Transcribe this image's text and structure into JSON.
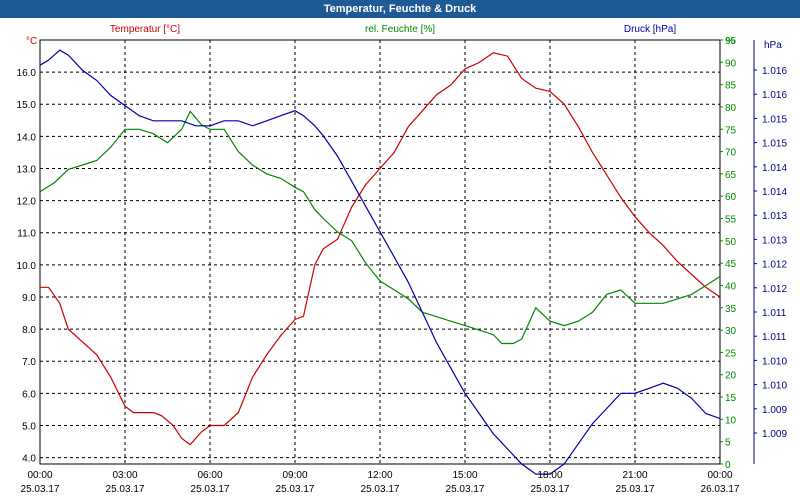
{
  "window": {
    "title": "Temperatur, Feuchte & Druck"
  },
  "chart_data": {
    "type": "line",
    "title": "Temperatur, Feuchte & Druck",
    "grid": true,
    "x": {
      "ticks": [
        {
          "time": "00:00",
          "date": "25.03.17"
        },
        {
          "time": "03:00",
          "date": "25.03.17"
        },
        {
          "time": "06:00",
          "date": "25.03.17"
        },
        {
          "time": "09:00",
          "date": "25.03.17"
        },
        {
          "time": "12:00",
          "date": "25.03.17"
        },
        {
          "time": "15:00",
          "date": "25.03.17"
        },
        {
          "time": "18:00",
          "date": "25.03.17"
        },
        {
          "time": "21:00",
          "date": "25.03.17"
        },
        {
          "time": "00:00",
          "date": "26.03.17"
        }
      ],
      "range_hours": [
        0,
        24
      ]
    },
    "axes": {
      "temperature": {
        "label": "°C",
        "min": 3.8,
        "max": 17.0,
        "ticks": [
          "4.0",
          "5.0",
          "6.0",
          "7.0",
          "8.0",
          "9.0",
          "10.0",
          "11.0",
          "12.0",
          "13.0",
          "14.0",
          "15.0",
          "16.0"
        ]
      },
      "humidity": {
        "label": "%",
        "min": 0,
        "max": 95,
        "ticks": [
          "0",
          "5",
          "10",
          "15",
          "20",
          "25",
          "30",
          "35",
          "40",
          "45",
          "50",
          "55",
          "60",
          "65",
          "70",
          "75",
          "80",
          "85",
          "90",
          "95"
        ]
      },
      "pressure": {
        "label": "hPa",
        "min": 1008.6,
        "max": 1017.0,
        "ticks": [
          "1.009",
          "1.009",
          "1.010",
          "1.010",
          "1.011",
          "1.011",
          "1.012",
          "1.012",
          "1.013",
          "1.013",
          "1.014",
          "1.014",
          "1.015",
          "1.015",
          "1.016",
          "1.016"
        ]
      }
    },
    "series": [
      {
        "name": "Temperatur [°C]",
        "axis": "temperature",
        "color": "#cc0000",
        "x": [
          0,
          0.3,
          0.7,
          1.0,
          1.5,
          2.0,
          2.5,
          3.0,
          3.3,
          3.7,
          4.0,
          4.3,
          4.7,
          5.0,
          5.3,
          5.7,
          6.0,
          6.5,
          7.0,
          7.5,
          8.0,
          8.5,
          9.0,
          9.3,
          9.7,
          10.0,
          10.5,
          11.0,
          11.5,
          12.0,
          12.5,
          13.0,
          13.5,
          14.0,
          14.5,
          15.0,
          15.5,
          16.0,
          16.5,
          17.0,
          17.5,
          18.0,
          18.5,
          19.0,
          19.5,
          20.0,
          20.5,
          21.0,
          21.5,
          22.0,
          22.5,
          23.0,
          23.5,
          24.0
        ],
        "values": [
          9.3,
          9.3,
          8.8,
          8.0,
          7.6,
          7.2,
          6.5,
          5.6,
          5.4,
          5.4,
          5.4,
          5.3,
          5.0,
          4.6,
          4.4,
          4.8,
          5.0,
          5.0,
          5.4,
          6.5,
          7.2,
          7.8,
          8.3,
          8.4,
          10.0,
          10.5,
          10.8,
          11.8,
          12.5,
          13.0,
          13.5,
          14.3,
          14.8,
          15.3,
          15.6,
          16.1,
          16.3,
          16.6,
          16.5,
          15.8,
          15.5,
          15.4,
          15.0,
          14.3,
          13.5,
          12.8,
          12.1,
          11.5,
          11.0,
          10.6,
          10.1,
          9.7,
          9.3,
          9.0
        ]
      },
      {
        "name": "rel. Feuchte [%]",
        "axis": "humidity",
        "color": "#008800",
        "x": [
          0,
          0.5,
          1.0,
          1.5,
          2.0,
          2.5,
          3.0,
          3.5,
          4.0,
          4.5,
          5.0,
          5.3,
          5.7,
          6.0,
          6.5,
          7.0,
          7.5,
          8.0,
          8.5,
          9.0,
          9.3,
          9.7,
          10.0,
          10.5,
          11.0,
          11.5,
          12.0,
          12.5,
          13.0,
          13.5,
          14.0,
          14.5,
          15.0,
          15.5,
          16.0,
          16.3,
          16.7,
          17.0,
          17.5,
          18.0,
          18.5,
          19.0,
          19.5,
          20.0,
          20.5,
          21.0,
          21.5,
          22.0,
          22.5,
          23.0,
          23.5,
          24.0
        ],
        "values": [
          61,
          63,
          66,
          67,
          68,
          71,
          75,
          75,
          74,
          72,
          75,
          79,
          76,
          75,
          75,
          70,
          67,
          65,
          64,
          62,
          61,
          57,
          55,
          52,
          50,
          45,
          41,
          39,
          37,
          34,
          33,
          32,
          31,
          30,
          29,
          27,
          27,
          28,
          35,
          32,
          31,
          32,
          34,
          38,
          39,
          36,
          36,
          36,
          37,
          38,
          40,
          42
        ]
      },
      {
        "name": "Druck [hPa]",
        "axis": "pressure",
        "color": "#0000aa",
        "x": [
          0,
          0.3,
          0.7,
          1.0,
          1.5,
          2.0,
          2.5,
          3.0,
          3.5,
          4.0,
          4.5,
          5.0,
          5.5,
          6.0,
          6.5,
          7.0,
          7.5,
          8.0,
          8.5,
          9.0,
          9.3,
          9.7,
          10.0,
          10.5,
          11.0,
          11.5,
          12.0,
          12.5,
          13.0,
          13.5,
          14.0,
          14.5,
          15.0,
          15.5,
          16.0,
          16.5,
          17.0,
          17.5,
          18.0,
          18.5,
          19.0,
          19.5,
          20.0,
          20.5,
          21.0,
          21.5,
          22.0,
          22.5,
          23.0,
          23.5,
          24.0
        ],
        "values": [
          1016.5,
          1016.6,
          1016.8,
          1016.7,
          1016.4,
          1016.2,
          1015.9,
          1015.7,
          1015.5,
          1015.4,
          1015.4,
          1015.4,
          1015.3,
          1015.3,
          1015.4,
          1015.4,
          1015.3,
          1015.4,
          1015.5,
          1015.6,
          1015.5,
          1015.3,
          1015.1,
          1014.7,
          1014.2,
          1013.7,
          1013.2,
          1012.7,
          1012.2,
          1011.6,
          1011.0,
          1010.5,
          1010.0,
          1009.6,
          1009.2,
          1008.9,
          1008.6,
          1008.4,
          1008.4,
          1008.6,
          1009.0,
          1009.4,
          1009.7,
          1010.0,
          1010.0,
          1010.1,
          1010.2,
          1010.1,
          1009.9,
          1009.6,
          1009.5
        ]
      }
    ]
  }
}
